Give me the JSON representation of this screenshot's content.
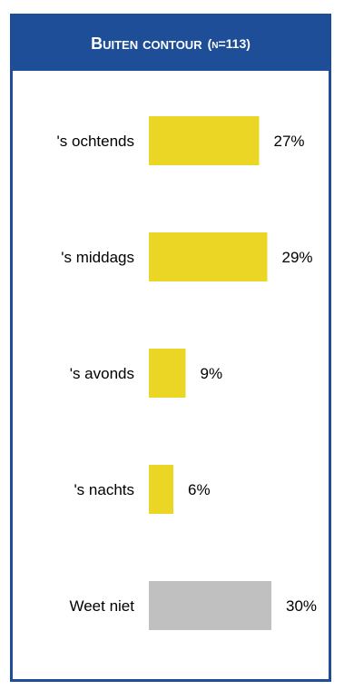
{
  "header": {
    "title": "Buiten contour",
    "n_label": "(n=113)",
    "background": "#1f4e98"
  },
  "chart_data": {
    "type": "bar",
    "orientation": "horizontal",
    "title": "Buiten contour (n=113)",
    "categories": [
      "'s ochtends",
      "'s middags",
      "'s avonds",
      "'s nachts",
      "Weet niet"
    ],
    "values": [
      27,
      29,
      9,
      6,
      30
    ],
    "value_labels": [
      "27%",
      "29%",
      "9%",
      "6%",
      "30%"
    ],
    "unit": "%",
    "colors": [
      "#ecd625",
      "#ecd625",
      "#ecd625",
      "#ecd625",
      "#c0c0c0"
    ],
    "xlim": [
      0,
      30
    ],
    "grid": false,
    "legend": "none"
  }
}
